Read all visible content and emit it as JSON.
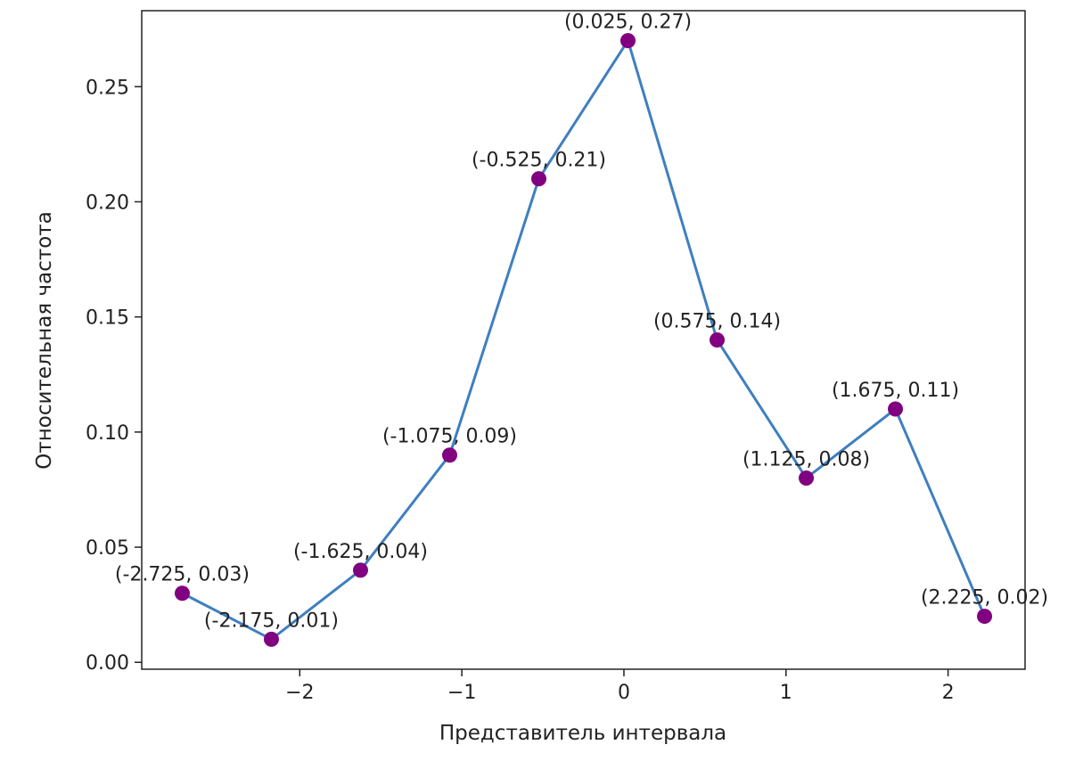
{
  "chart_data": {
    "type": "line",
    "title": "",
    "xlabel": "Представитель интервала",
    "ylabel": "Относительная частота",
    "xlim": [
      -2.975,
      2.475
    ],
    "ylim": [
      -0.003,
      0.283
    ],
    "x_ticks": [
      -2,
      -1,
      0,
      1,
      2
    ],
    "x_tick_labels": [
      "−2",
      "−1",
      "0",
      "1",
      "2"
    ],
    "y_ticks": [
      0.0,
      0.05,
      0.1,
      0.15,
      0.2,
      0.25
    ],
    "y_tick_labels": [
      "0.00",
      "0.05",
      "0.10",
      "0.15",
      "0.20",
      "0.25"
    ],
    "grid": false,
    "line_color": "#3f7fbf",
    "marker_color": "#800080",
    "x": [
      -2.725,
      -2.175,
      -1.625,
      -1.075,
      -0.525,
      0.025,
      0.575,
      1.125,
      1.675,
      2.225
    ],
    "series": [
      {
        "values": [
          0.03,
          0.01,
          0.04,
          0.09,
          0.21,
          0.27,
          0.14,
          0.08,
          0.11,
          0.02
        ]
      }
    ],
    "point_labels": [
      "(-2.725, 0.03)",
      "(-2.175, 0.01)",
      "(-1.625, 0.04)",
      "(-1.075, 0.09)",
      "(-0.525, 0.21)",
      "(0.025, 0.27)",
      "(0.575, 0.14)",
      "(1.125, 0.08)",
      "(1.675, 0.11)",
      "(2.225, 0.02)"
    ]
  }
}
